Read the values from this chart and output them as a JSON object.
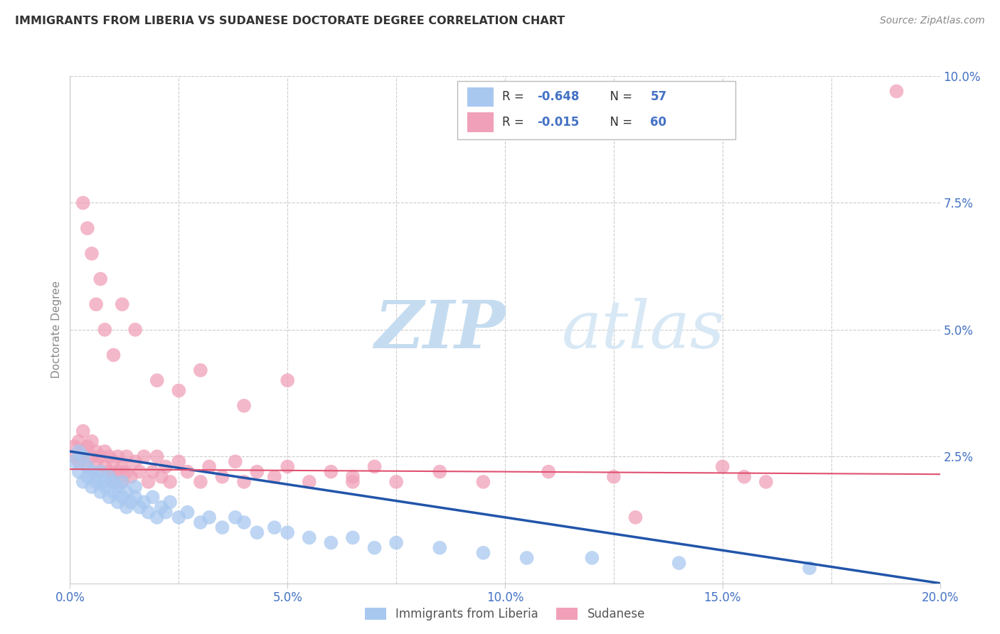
{
  "title": "IMMIGRANTS FROM LIBERIA VS SUDANESE DOCTORATE DEGREE CORRELATION CHART",
  "source": "Source: ZipAtlas.com",
  "ylabel": "Doctorate Degree",
  "series1_name": "Immigrants from Liberia",
  "series2_name": "Sudanese",
  "R1": -0.648,
  "N1": 57,
  "R2": -0.015,
  "N2": 60,
  "color1": "#A8C8F0",
  "color2": "#F0A0B8",
  "trendline1_color": "#2255AA",
  "trendline2_color": "#E05070",
  "xlim": [
    0.0,
    0.2
  ],
  "ylim": [
    0.0,
    0.1
  ],
  "watermark_zip": "ZIP",
  "watermark_atlas": "atlas",
  "legend_text_color": "#4472C4",
  "axis_tick_color": "#4472C4",
  "grid_color": "#CCCCCC",
  "liberia_x": [
    0.001,
    0.002,
    0.002,
    0.003,
    0.003,
    0.004,
    0.004,
    0.005,
    0.005,
    0.006,
    0.006,
    0.007,
    0.007,
    0.008,
    0.008,
    0.009,
    0.009,
    0.01,
    0.01,
    0.011,
    0.011,
    0.012,
    0.012,
    0.013,
    0.013,
    0.014,
    0.015,
    0.015,
    0.016,
    0.017,
    0.018,
    0.019,
    0.02,
    0.021,
    0.022,
    0.023,
    0.025,
    0.027,
    0.03,
    0.032,
    0.035,
    0.038,
    0.04,
    0.043,
    0.047,
    0.05,
    0.055,
    0.06,
    0.065,
    0.07,
    0.075,
    0.085,
    0.095,
    0.105,
    0.12,
    0.14,
    0.17
  ],
  "liberia_y": [
    0.024,
    0.022,
    0.026,
    0.02,
    0.025,
    0.021,
    0.023,
    0.019,
    0.022,
    0.02,
    0.021,
    0.018,
    0.022,
    0.019,
    0.02,
    0.017,
    0.021,
    0.018,
    0.02,
    0.016,
    0.019,
    0.017,
    0.02,
    0.015,
    0.018,
    0.016,
    0.017,
    0.019,
    0.015,
    0.016,
    0.014,
    0.017,
    0.013,
    0.015,
    0.014,
    0.016,
    0.013,
    0.014,
    0.012,
    0.013,
    0.011,
    0.013,
    0.012,
    0.01,
    0.011,
    0.01,
    0.009,
    0.008,
    0.009,
    0.007,
    0.008,
    0.007,
    0.006,
    0.005,
    0.005,
    0.004,
    0.003
  ],
  "sudanese_x": [
    0.001,
    0.001,
    0.002,
    0.002,
    0.003,
    0.003,
    0.003,
    0.004,
    0.004,
    0.005,
    0.005,
    0.006,
    0.006,
    0.007,
    0.007,
    0.008,
    0.008,
    0.009,
    0.009,
    0.01,
    0.01,
    0.011,
    0.011,
    0.012,
    0.012,
    0.013,
    0.013,
    0.014,
    0.015,
    0.016,
    0.017,
    0.018,
    0.019,
    0.02,
    0.021,
    0.022,
    0.023,
    0.025,
    0.027,
    0.03,
    0.032,
    0.035,
    0.038,
    0.04,
    0.043,
    0.047,
    0.05,
    0.055,
    0.06,
    0.065,
    0.07,
    0.075,
    0.085,
    0.095,
    0.11,
    0.125,
    0.15,
    0.155,
    0.16,
    0.19
  ],
  "sudanese_y": [
    0.025,
    0.027,
    0.024,
    0.028,
    0.025,
    0.026,
    0.03,
    0.023,
    0.027,
    0.025,
    0.028,
    0.024,
    0.026,
    0.022,
    0.025,
    0.023,
    0.026,
    0.022,
    0.025,
    0.021,
    0.024,
    0.022,
    0.025,
    0.02,
    0.023,
    0.022,
    0.025,
    0.021,
    0.024,
    0.022,
    0.025,
    0.02,
    0.022,
    0.025,
    0.021,
    0.023,
    0.02,
    0.024,
    0.022,
    0.02,
    0.023,
    0.021,
    0.024,
    0.02,
    0.022,
    0.021,
    0.023,
    0.02,
    0.022,
    0.021,
    0.023,
    0.02,
    0.022,
    0.02,
    0.022,
    0.021,
    0.023,
    0.021,
    0.02,
    0.097
  ],
  "sudanese_extra_x": [
    0.003,
    0.004,
    0.005,
    0.006,
    0.007,
    0.008,
    0.01,
    0.012,
    0.015,
    0.02,
    0.025,
    0.03,
    0.04,
    0.05,
    0.065,
    0.13
  ],
  "sudanese_extra_y": [
    0.075,
    0.07,
    0.065,
    0.055,
    0.06,
    0.05,
    0.045,
    0.055,
    0.05,
    0.04,
    0.038,
    0.042,
    0.035,
    0.04,
    0.02,
    0.013
  ],
  "trendline1_x0": 0.0,
  "trendline1_y0": 0.026,
  "trendline1_x1": 0.2,
  "trendline1_y1": 0.0,
  "trendline2_x0": 0.0,
  "trendline2_y0": 0.0225,
  "trendline2_x1": 0.2,
  "trendline2_y1": 0.0215
}
